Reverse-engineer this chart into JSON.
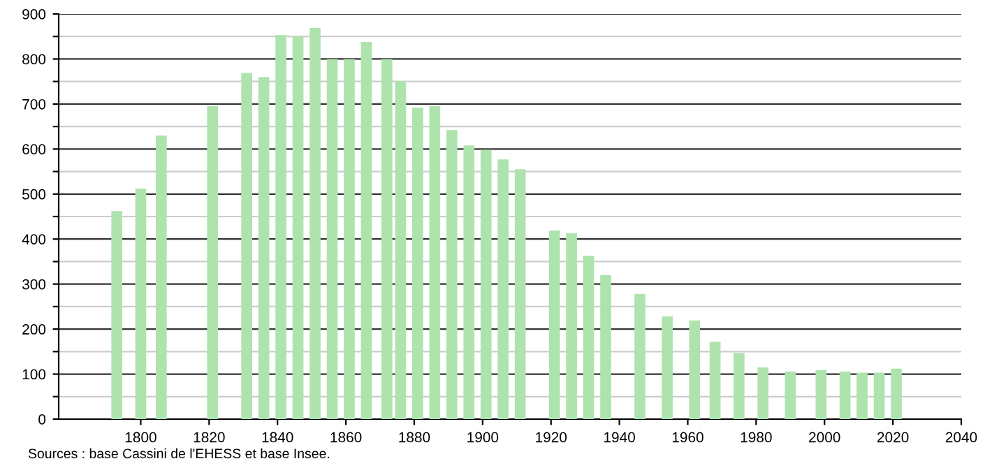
{
  "chart_data": {
    "type": "bar",
    "x": [
      1793,
      1800,
      1806,
      1821,
      1831,
      1836,
      1841,
      1846,
      1851,
      1856,
      1861,
      1866,
      1872,
      1876,
      1881,
      1886,
      1891,
      1896,
      1901,
      1906,
      1911,
      1921,
      1926,
      1931,
      1936,
      1946,
      1954,
      1962,
      1968,
      1975,
      1982,
      1990,
      1999,
      2006,
      2011,
      2016,
      2021
    ],
    "values": [
      462,
      512,
      630,
      695,
      769,
      760,
      853,
      850,
      869,
      800,
      800,
      838,
      800,
      751,
      692,
      695,
      642,
      608,
      598,
      577,
      555,
      419,
      413,
      363,
      320,
      278,
      228,
      219,
      172,
      147,
      115,
      106,
      109,
      106,
      103,
      103,
      112
    ],
    "color": "#aee3ae",
    "xlim": [
      1776,
      2040
    ],
    "xticks": [
      1800,
      1820,
      1840,
      1860,
      1880,
      1900,
      1920,
      1940,
      1960,
      1980,
      2000,
      2020,
      2040
    ],
    "ylim": [
      0,
      900
    ],
    "yticks": [
      0,
      {
        "value": 50,
        "label": null
      },
      100,
      {
        "value": 150,
        "label": null
      },
      200,
      {
        "value": 250,
        "label": null
      },
      300,
      {
        "value": 350,
        "label": null
      },
      400,
      {
        "value": 450,
        "label": null
      },
      500,
      {
        "value": 550,
        "label": null
      },
      600,
      {
        "value": 650,
        "label": null
      },
      700,
      {
        "value": 750,
        "label": null
      },
      800,
      {
        "value": 850,
        "label": null
      },
      900
    ],
    "grid": "y",
    "annotations": [
      "Sources : base Cassini de l'EHESS et base Insee."
    ]
  }
}
